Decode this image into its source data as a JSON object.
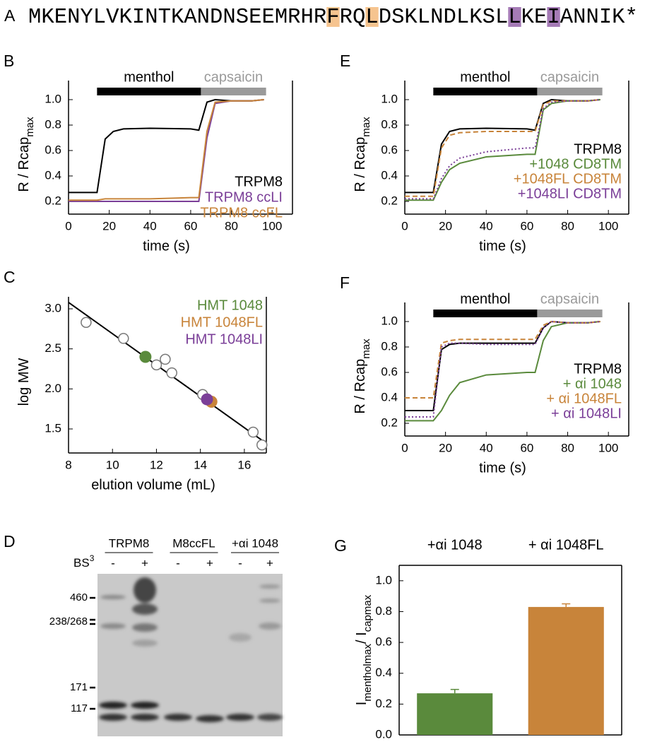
{
  "sequence_panel": {
    "panel": "A",
    "segments": [
      {
        "text": "MKENYLVKINTKANDNSEEMRHR"
      },
      {
        "text": "F",
        "highlight": "#f6c48f"
      },
      {
        "text": "RQ"
      },
      {
        "text": "L",
        "highlight": "#f6c48f"
      },
      {
        "text": "DSKLNDLKSL"
      },
      {
        "text": "L",
        "highlight": "#a57bb6"
      },
      {
        "text": "KE"
      },
      {
        "text": "I",
        "highlight": "#a57bb6"
      },
      {
        "text": "ANNIK*"
      }
    ]
  },
  "chart_data": [
    {
      "type": "line",
      "panel": "B",
      "xlabel": "time (s)",
      "ylabel": [
        {
          "text": "R / Rcap"
        },
        {
          "text": "max",
          "sub": true
        }
      ],
      "xlim": [
        0,
        110
      ],
      "ylim": [
        0.1,
        1.15
      ],
      "xticks": [
        0,
        20,
        40,
        60,
        80,
        100
      ],
      "yticks": [
        0.2,
        0.4,
        0.6,
        0.8,
        {
          "value": 1,
          "label": "1.0"
        }
      ],
      "bars": [
        {
          "label": "menthol",
          "x": [
            14,
            97
          ],
          "color": "#000000"
        },
        {
          "label": "capsaicin",
          "x": [
            65,
            97
          ],
          "color": "#9a9a9a"
        }
      ],
      "x": [
        0,
        14,
        18,
        22,
        27,
        40,
        60,
        64,
        68,
        72,
        80,
        90,
        96
      ],
      "series": [
        {
          "name": "TRPM8",
          "color": "#000000",
          "dash": "solid",
          "values": [
            0.27,
            0.27,
            0.69,
            0.75,
            0.77,
            0.775,
            0.77,
            0.76,
            0.98,
            1.0,
            0.99,
            0.99,
            1.0
          ]
        },
        {
          "name": "TRPM8 ccLI",
          "color": "#7b3f98",
          "dash": "solid",
          "values": [
            0.2,
            0.2,
            0.2,
            0.2,
            0.2,
            0.2,
            0.2,
            0.2,
            0.7,
            0.97,
            0.99,
            0.99,
            1.0
          ]
        },
        {
          "name": "TRPM8 ccFL",
          "color": "#c8843a",
          "dash": "solid",
          "values": [
            0.21,
            0.21,
            0.22,
            0.22,
            0.22,
            0.22,
            0.23,
            0.23,
            0.75,
            0.98,
            0.99,
            0.99,
            1.0
          ]
        }
      ]
    },
    {
      "type": "scatter",
      "panel": "C",
      "xlabel": "elution volume (mL)",
      "ylabel": [
        {
          "text": "log MW"
        }
      ],
      "xlim": [
        8,
        17
      ],
      "ylim": [
        1.2,
        3.15
      ],
      "xticks": [
        8,
        10,
        12,
        14,
        16
      ],
      "yticks": [
        1.5,
        {
          "value": 2,
          "label": "2.0"
        },
        2.5,
        {
          "value": 3,
          "label": "3.0"
        }
      ],
      "fit": {
        "x": [
          8,
          17
        ],
        "y": [
          3.08,
          1.32
        ],
        "color": "#000000"
      },
      "standards": {
        "x": [
          8.8,
          10.5,
          12.0,
          12.4,
          12.7,
          14.1,
          16.4,
          16.8
        ],
        "y": [
          2.83,
          2.63,
          2.3,
          2.37,
          2.2,
          1.93,
          1.46,
          1.3
        ],
        "color": "#777777"
      },
      "series": [
        {
          "name": "HMT 1048",
          "color": "#5a8a3c",
          "x": [
            11.5
          ],
          "values": [
            2.4
          ]
        },
        {
          "name": "HMT 1048FL",
          "color": "#c8843a",
          "x": [
            14.5
          ],
          "values": [
            1.84
          ]
        },
        {
          "name": "HMT 1048LI",
          "color": "#7b3f98",
          "x": [
            14.3
          ],
          "values": [
            1.87
          ]
        }
      ]
    },
    {
      "type": "line",
      "panel": "E",
      "xlabel": "time (s)",
      "ylabel": [
        {
          "text": "R / Rcap"
        },
        {
          "text": "max",
          "sub": true
        }
      ],
      "xlim": [
        0,
        110
      ],
      "ylim": [
        0.1,
        1.15
      ],
      "xticks": [
        0,
        20,
        40,
        60,
        80,
        100
      ],
      "yticks": [
        0.2,
        0.4,
        0.6,
        0.8,
        {
          "value": 1,
          "label": "1.0"
        }
      ],
      "bars": [
        {
          "label": "menthol",
          "x": [
            14,
            97
          ],
          "color": "#000000"
        },
        {
          "label": "capsaicin",
          "x": [
            65,
            97
          ],
          "color": "#9a9a9a"
        }
      ],
      "x": [
        0,
        14,
        18,
        22,
        27,
        40,
        60,
        64,
        68,
        72,
        80,
        90,
        96
      ],
      "series": [
        {
          "name": "TRPM8",
          "color": "#000000",
          "dash": "solid",
          "values": [
            0.27,
            0.27,
            0.65,
            0.75,
            0.77,
            0.775,
            0.77,
            0.76,
            0.97,
            1.0,
            0.99,
            0.99,
            1.0
          ]
        },
        {
          "name": "+1048 CD8TM",
          "color": "#5a8a3c",
          "dash": "solid",
          "values": [
            0.21,
            0.21,
            0.35,
            0.45,
            0.5,
            0.55,
            0.57,
            0.57,
            0.92,
            0.97,
            0.99,
            0.99,
            1.0
          ]
        },
        {
          "name": "+1048FL CD8TM",
          "color": "#c8843a",
          "dash": "dashed",
          "values": [
            0.24,
            0.24,
            0.62,
            0.72,
            0.74,
            0.75,
            0.75,
            0.75,
            0.96,
            0.99,
            0.99,
            0.99,
            1.0
          ]
        },
        {
          "name": "+1048LI CD8TM",
          "color": "#7b3f98",
          "dash": "dotted",
          "values": [
            0.22,
            0.22,
            0.38,
            0.48,
            0.54,
            0.59,
            0.62,
            0.62,
            0.93,
            0.98,
            0.99,
            0.99,
            1.0
          ]
        }
      ]
    },
    {
      "type": "line",
      "panel": "F",
      "xlabel": "time (s)",
      "ylabel": [
        {
          "text": "R / Rcap"
        },
        {
          "text": "max",
          "sub": true
        }
      ],
      "xlim": [
        0,
        110
      ],
      "ylim": [
        0.1,
        1.15
      ],
      "xticks": [
        0,
        20,
        40,
        60,
        80,
        100
      ],
      "yticks": [
        0.2,
        0.4,
        0.6,
        0.8,
        {
          "value": 1,
          "label": "1.0"
        }
      ],
      "bars": [
        {
          "label": "menthol",
          "x": [
            14,
            97
          ],
          "color": "#000000"
        },
        {
          "label": "capsaicin",
          "x": [
            65,
            97
          ],
          "color": "#9a9a9a"
        }
      ],
      "x": [
        0,
        14,
        18,
        22,
        27,
        40,
        60,
        64,
        68,
        72,
        80,
        90,
        96
      ],
      "series": [
        {
          "name": "TRPM8",
          "color": "#000000",
          "dash": "solid",
          "values": [
            0.3,
            0.3,
            0.78,
            0.82,
            0.83,
            0.83,
            0.83,
            0.83,
            0.95,
            1.0,
            0.99,
            0.99,
            1.0
          ]
        },
        {
          "name": "+ αi 1048",
          "color": "#5a8a3c",
          "dash": "solid",
          "values": [
            0.22,
            0.22,
            0.3,
            0.42,
            0.52,
            0.58,
            0.6,
            0.6,
            0.85,
            0.96,
            0.99,
            0.99,
            1.0
          ]
        },
        {
          "name": "+ αi 1048FL",
          "color": "#c8843a",
          "dash": "dashed",
          "values": [
            0.4,
            0.4,
            0.83,
            0.85,
            0.86,
            0.86,
            0.86,
            0.86,
            0.97,
            1.0,
            0.99,
            0.99,
            1.0
          ]
        },
        {
          "name": "+ αi 1048LI",
          "color": "#7b3f98",
          "dash": "dotted",
          "values": [
            0.25,
            0.25,
            0.8,
            0.83,
            0.83,
            0.82,
            0.82,
            0.82,
            0.95,
            1.0,
            0.99,
            0.99,
            1.0
          ]
        }
      ]
    },
    {
      "type": "bar",
      "panel": "G",
      "ylabel": [
        {
          "text": "I"
        },
        {
          "text": "menthol",
          "sub": true
        },
        {
          "text": "max",
          "sub": true
        },
        {
          "text": "/ I"
        },
        {
          "text": "cap",
          "sub": true
        },
        {
          "text": "max",
          "sub": true
        }
      ],
      "ylim": [
        0,
        1.1
      ],
      "yticks": [
        {
          "value": 0,
          "label": "0.0"
        },
        0.2,
        0.4,
        0.6,
        0.8,
        {
          "value": 1,
          "label": "1.0"
        }
      ],
      "categories": [
        "+αi 1048",
        "+ αi 1048FL"
      ],
      "values": [
        0.27,
        0.83
      ],
      "errors": [
        0.025,
        0.02
      ],
      "colors": [
        "#5a8a3c",
        "#c8843a"
      ]
    }
  ],
  "gel": {
    "panel": "D",
    "groups": [
      "TRPM8",
      "M8ccFL",
      "+αi 1048"
    ],
    "crosslinker": [
      {
        "text": "BS"
      },
      {
        "text": "3",
        "sup": true
      }
    ],
    "lanes": [
      "-",
      "+",
      "-",
      "+",
      "-",
      "+"
    ],
    "markers": [
      "460",
      "238/268",
      "171",
      "117"
    ]
  }
}
